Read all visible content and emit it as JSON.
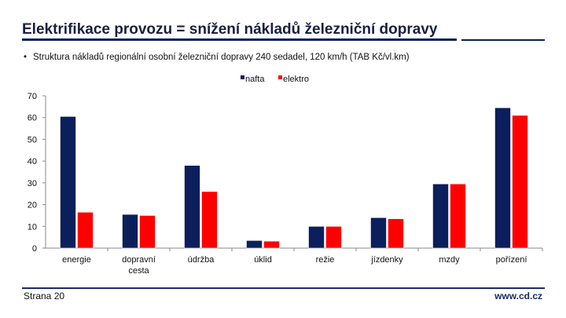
{
  "slide": {
    "title": "Elektrifikace provozu = snížení nákladů železniční dopravy",
    "bullet": "Struktura nákladů regionální osobní železniční dopravy 240 sedadel, 120 km/h (TAB Kč/vl.km)",
    "bullet_marker": "•",
    "page_label": "Strana 20",
    "website": "www.cd.cz"
  },
  "colors": {
    "nafta": "#0b1f5c",
    "elektro": "#ff0000",
    "title": "#16213f",
    "rule": "#0a1e5e"
  },
  "chart_data": {
    "type": "bar",
    "title": "",
    "xlabel": "",
    "ylabel": "",
    "ylim": [
      0,
      70
    ],
    "yticks": [
      0,
      10,
      20,
      30,
      40,
      50,
      60,
      70
    ],
    "legend_position": "top-center",
    "grid": false,
    "categories": [
      "energie",
      "dopravní cesta",
      "údržba",
      "úklid",
      "režie",
      "jízdenky",
      "mzdy",
      "pořízení"
    ],
    "series": [
      {
        "name": "nafta",
        "color": "#0b1f5c",
        "values": [
          60.5,
          15.5,
          38,
          3.5,
          10,
          14,
          29.5,
          64.5
        ]
      },
      {
        "name": "elektro",
        "color": "#ff0000",
        "values": [
          16.5,
          15,
          26,
          3.2,
          10,
          13.5,
          29.5,
          61
        ]
      }
    ]
  }
}
